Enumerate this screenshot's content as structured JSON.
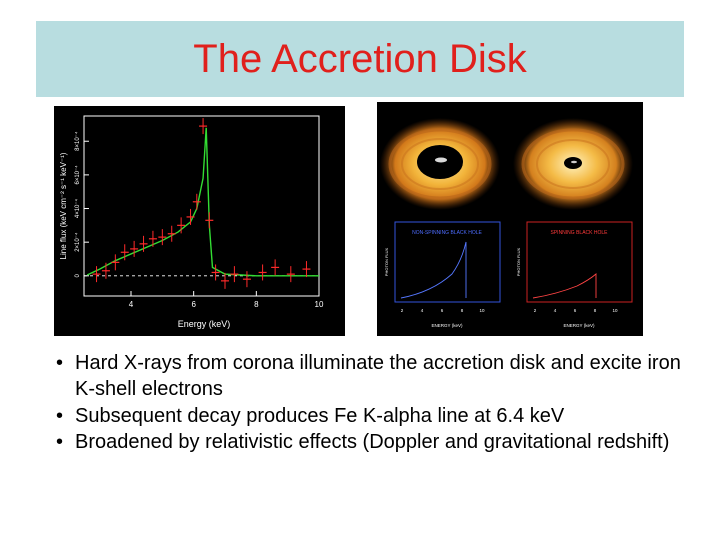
{
  "slide": {
    "title": "The Accretion Disk",
    "bullets": [
      "Hard X-rays from corona illuminate the accretion disk and excite iron K-shell electrons",
      "Subsequent decay produces Fe K-alpha line at 6.4 keV",
      "Broadened by relativistic effects (Doppler and gravitational redshift)"
    ],
    "bullet_glyph": "•"
  },
  "left_figure": {
    "ylabel": "Line flux (keV cm⁻² s⁻¹ keV⁻¹)",
    "xlabel": "Energy (keV)",
    "xticks": [
      "4",
      "6",
      "8",
      "10"
    ],
    "yticks": [
      "0",
      "2×10⁻⁴",
      "4×10⁻⁴",
      "6×10⁻⁴",
      "8×10⁻⁴"
    ],
    "colors": {
      "data": "#ff2a2a",
      "model": "#33dd33",
      "axes": "#ffffff"
    }
  },
  "right_figure": {
    "left_panel_label": "NON-SPINNING BLACK HOLE",
    "right_panel_label": "SPINNING BLACK HOLE",
    "xlabel": "ENERGY (keV)",
    "ylabel": "PHOTON FLUX",
    "xticks": [
      "2",
      "4",
      "6",
      "8",
      "10"
    ],
    "colors": {
      "left_frame": "#3355dd",
      "right_frame": "#cc2222",
      "disk": "#e08a1a"
    }
  },
  "chart_data": {
    "type": "scatter",
    "xlabel": "Energy (keV)",
    "ylabel": "Line flux (keV cm⁻² s⁻¹ keV⁻¹)",
    "xlim": [
      2.5,
      10
    ],
    "ylim": [
      -0.00012,
      0.00095
    ],
    "series": [
      {
        "style": "points-with-errorbars",
        "x": [
          2.9,
          3.2,
          3.5,
          3.8,
          4.1,
          4.4,
          4.7,
          5.0,
          5.3,
          5.6,
          5.9,
          6.1,
          6.3,
          6.5,
          6.7,
          7.0,
          7.3,
          7.7,
          8.2,
          8.6,
          9.1,
          9.6
        ],
        "y": [
          1e-05,
          3e-05,
          8e-05,
          0.00014,
          0.00016,
          0.00019,
          0.00022,
          0.00023,
          0.00025,
          0.0003,
          0.00035,
          0.00044,
          0.00089,
          0.00033,
          2e-05,
          -3e-05,
          1e-05,
          -2e-05,
          2e-05,
          5e-05,
          1e-05,
          4e-05
        ]
      },
      {
        "style": "model-line",
        "x": [
          2.6,
          3.0,
          3.5,
          4.0,
          4.5,
          5.0,
          5.5,
          5.9,
          6.1,
          6.3,
          6.4,
          6.5,
          6.6,
          7.0,
          8.0,
          9.0,
          10.0
        ],
        "y": [
          5e-06,
          4e-05,
          9e-05,
          0.00013,
          0.00017,
          0.00021,
          0.00026,
          0.00032,
          0.0004,
          0.00058,
          0.00088,
          0.0003,
          5e-05,
          1e-05,
          0.0,
          0.0,
          0.0
        ]
      }
    ]
  }
}
